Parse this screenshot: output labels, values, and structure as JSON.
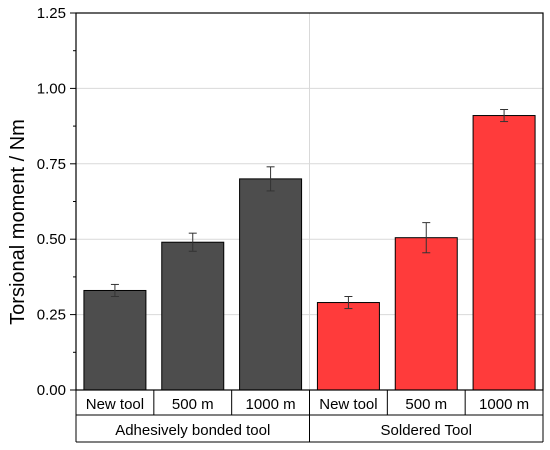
{
  "chart_data": {
    "type": "bar",
    "ylabel": "Torsional moment / Nm",
    "ylim": [
      0,
      1.25
    ],
    "yticks": [
      "0.00",
      "0.25",
      "0.50",
      "0.75",
      "1.00",
      "1.25"
    ],
    "grid": true,
    "categories": [
      "New tool",
      "500 m",
      "1000 m",
      "New tool",
      "500 m",
      "1000 m"
    ],
    "groups": [
      {
        "label": "Adhesively bonded tool",
        "color": "#4d4d4d"
      },
      {
        "label": "Soldered Tool",
        "color": "#ff3b3b"
      }
    ],
    "values": [
      0.33,
      0.49,
      0.7,
      0.29,
      0.505,
      0.91
    ],
    "errors": [
      0.02,
      0.03,
      0.04,
      0.02,
      0.05,
      0.02
    ]
  }
}
